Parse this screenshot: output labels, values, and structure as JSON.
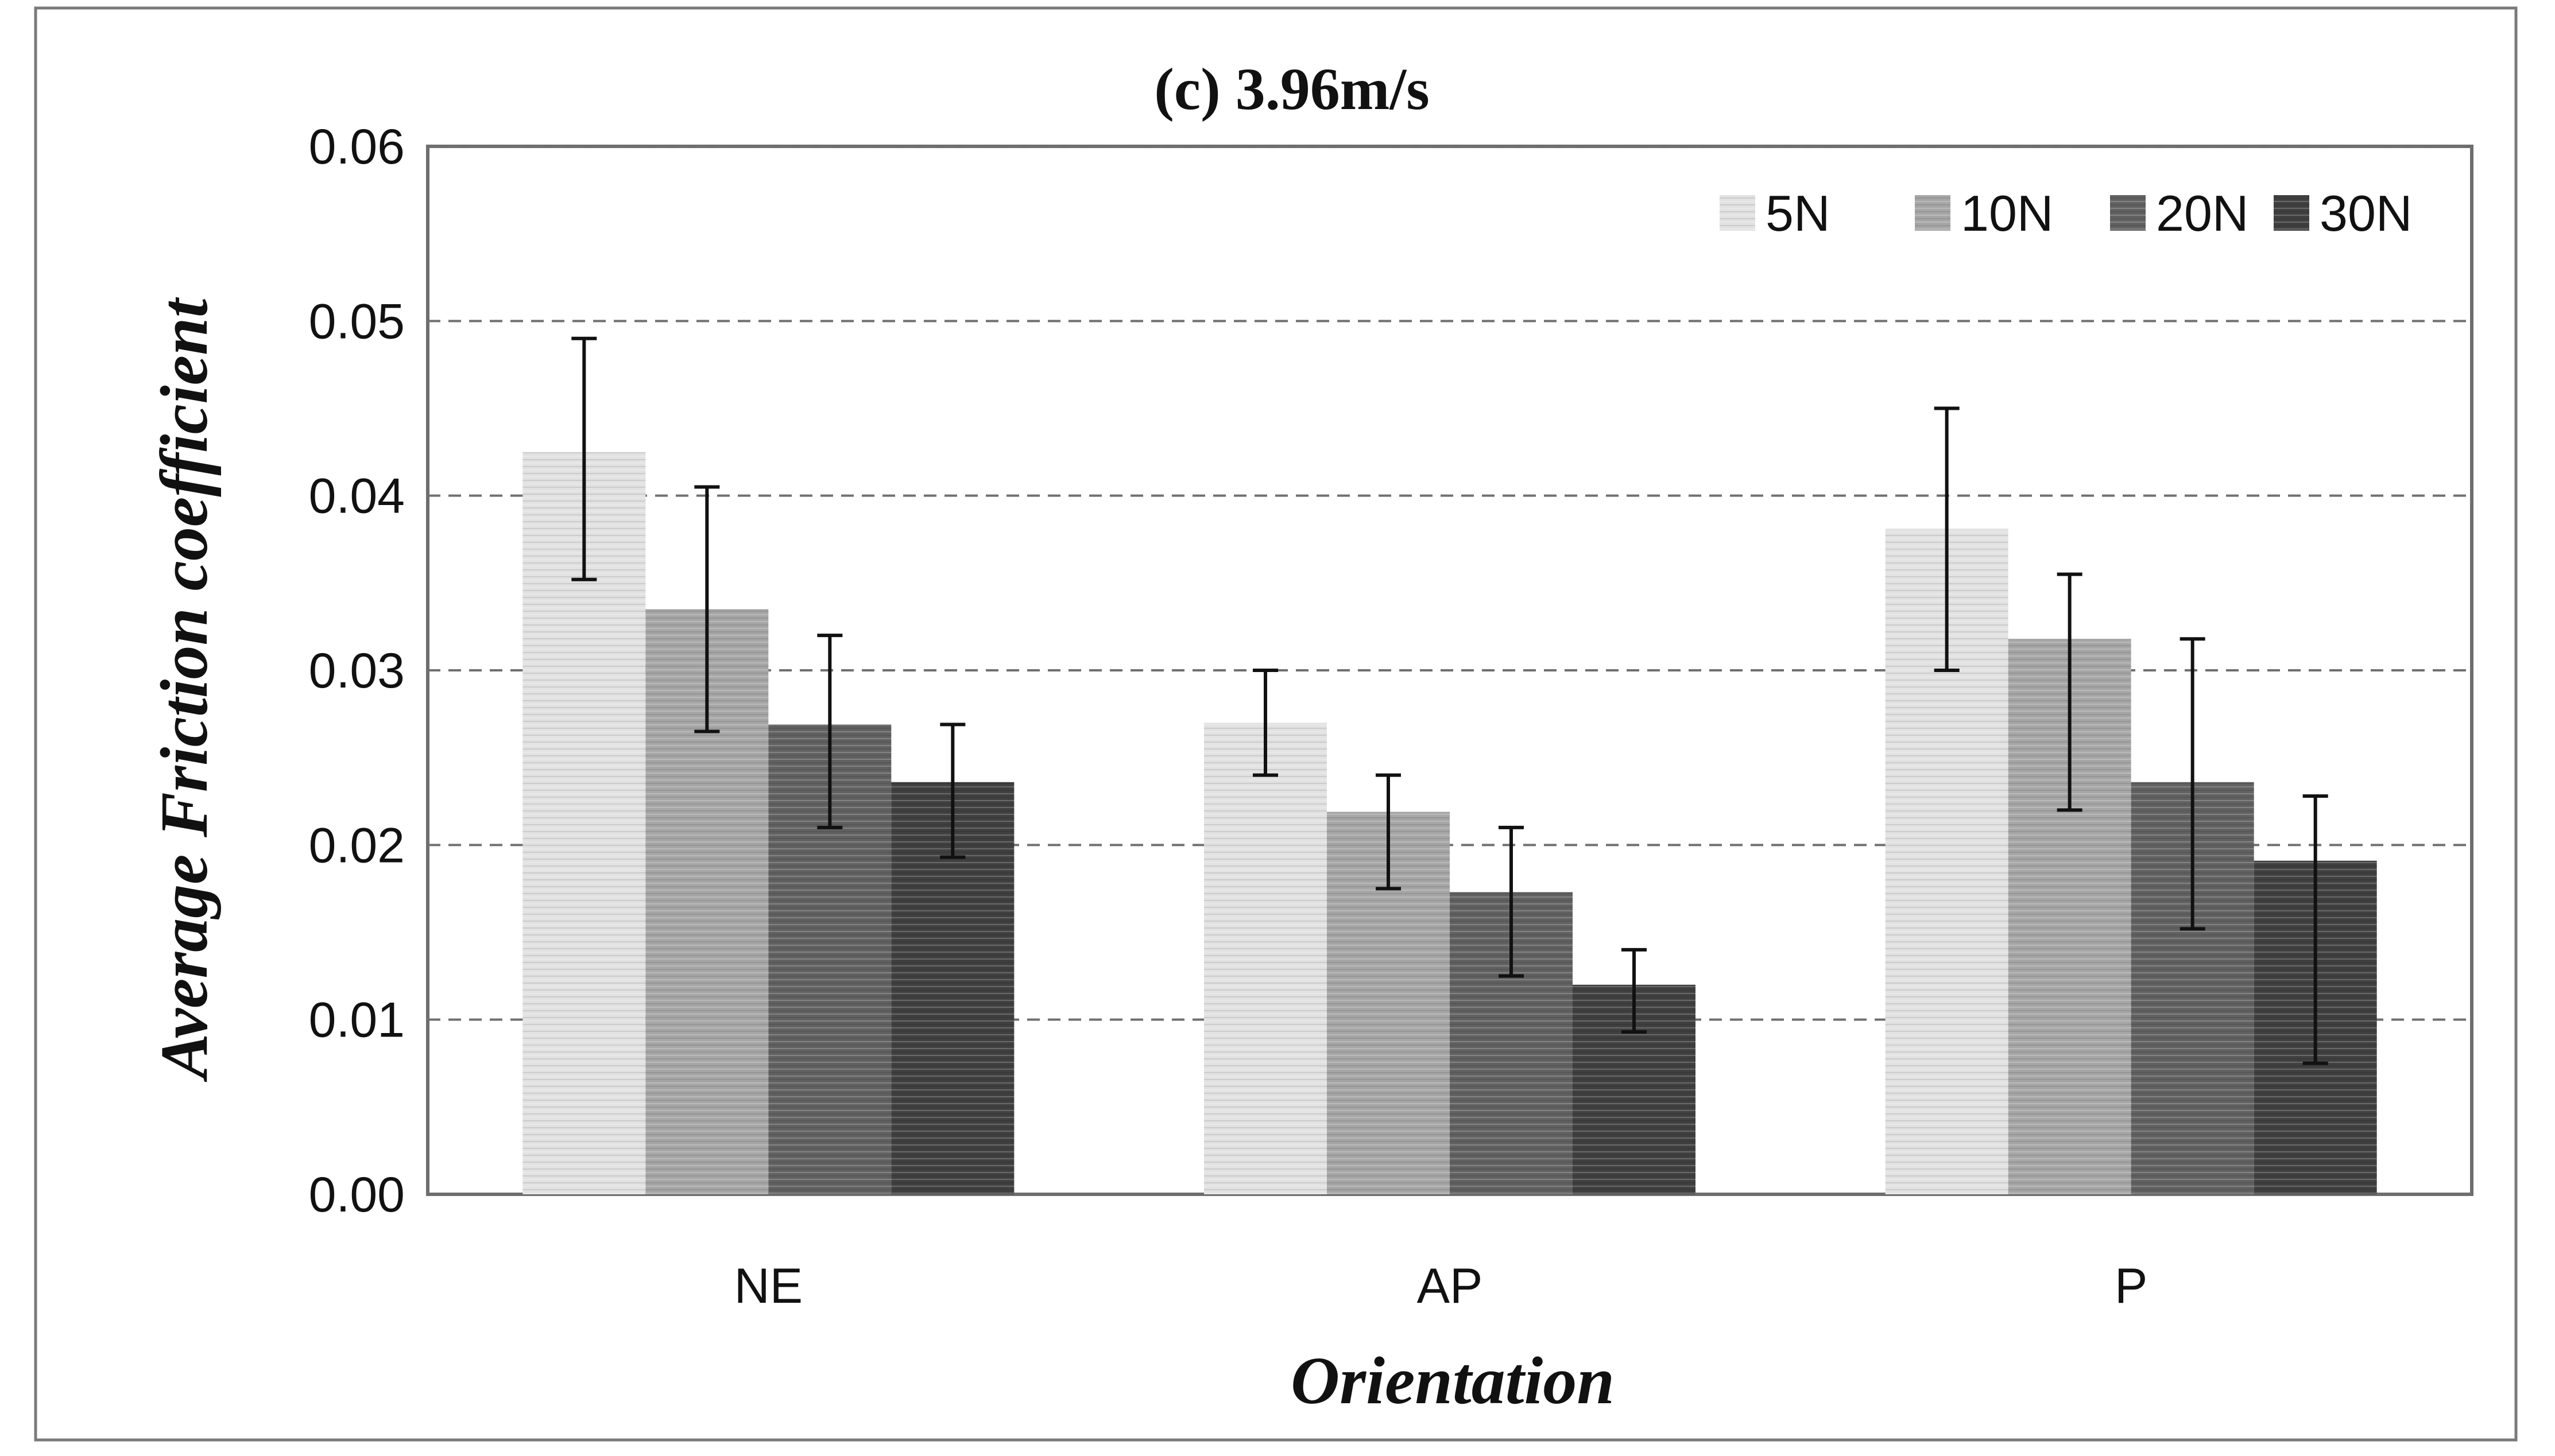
{
  "chart_data": {
    "type": "bar",
    "title": "(c) 3.96m/s",
    "xlabel": "Orientation",
    "ylabel": "Average Friction coefficient",
    "categories": [
      "NE",
      "AP",
      "P"
    ],
    "ylim": [
      0,
      0.06
    ],
    "yticks": [
      "0.00",
      "0.01",
      "0.02",
      "0.03",
      "0.04",
      "0.05",
      "0.06"
    ],
    "grid": true,
    "legend_position": "top-right",
    "series": [
      {
        "name": "5N",
        "color": "#e2e2e2",
        "values": [
          0.0425,
          0.027,
          0.0381
        ],
        "error_low": [
          0.0352,
          0.024,
          0.03
        ],
        "error_high": [
          0.049,
          0.03,
          0.045
        ]
      },
      {
        "name": "10N",
        "color": "#a6a6a6",
        "values": [
          0.0335,
          0.0219,
          0.0318
        ],
        "error_low": [
          0.0265,
          0.0175,
          0.022
        ],
        "error_high": [
          0.0405,
          0.024,
          0.0355
        ]
      },
      {
        "name": "20N",
        "color": "#616161",
        "values": [
          0.0269,
          0.0173,
          0.0236
        ],
        "error_low": [
          0.021,
          0.0125,
          0.0152
        ],
        "error_high": [
          0.032,
          0.021,
          0.0318
        ]
      },
      {
        "name": "30N",
        "color": "#404040",
        "values": [
          0.0236,
          0.012,
          0.0191
        ],
        "error_low": [
          0.0193,
          0.0093,
          0.0075
        ],
        "error_high": [
          0.0269,
          0.014,
          0.0228
        ]
      }
    ]
  }
}
